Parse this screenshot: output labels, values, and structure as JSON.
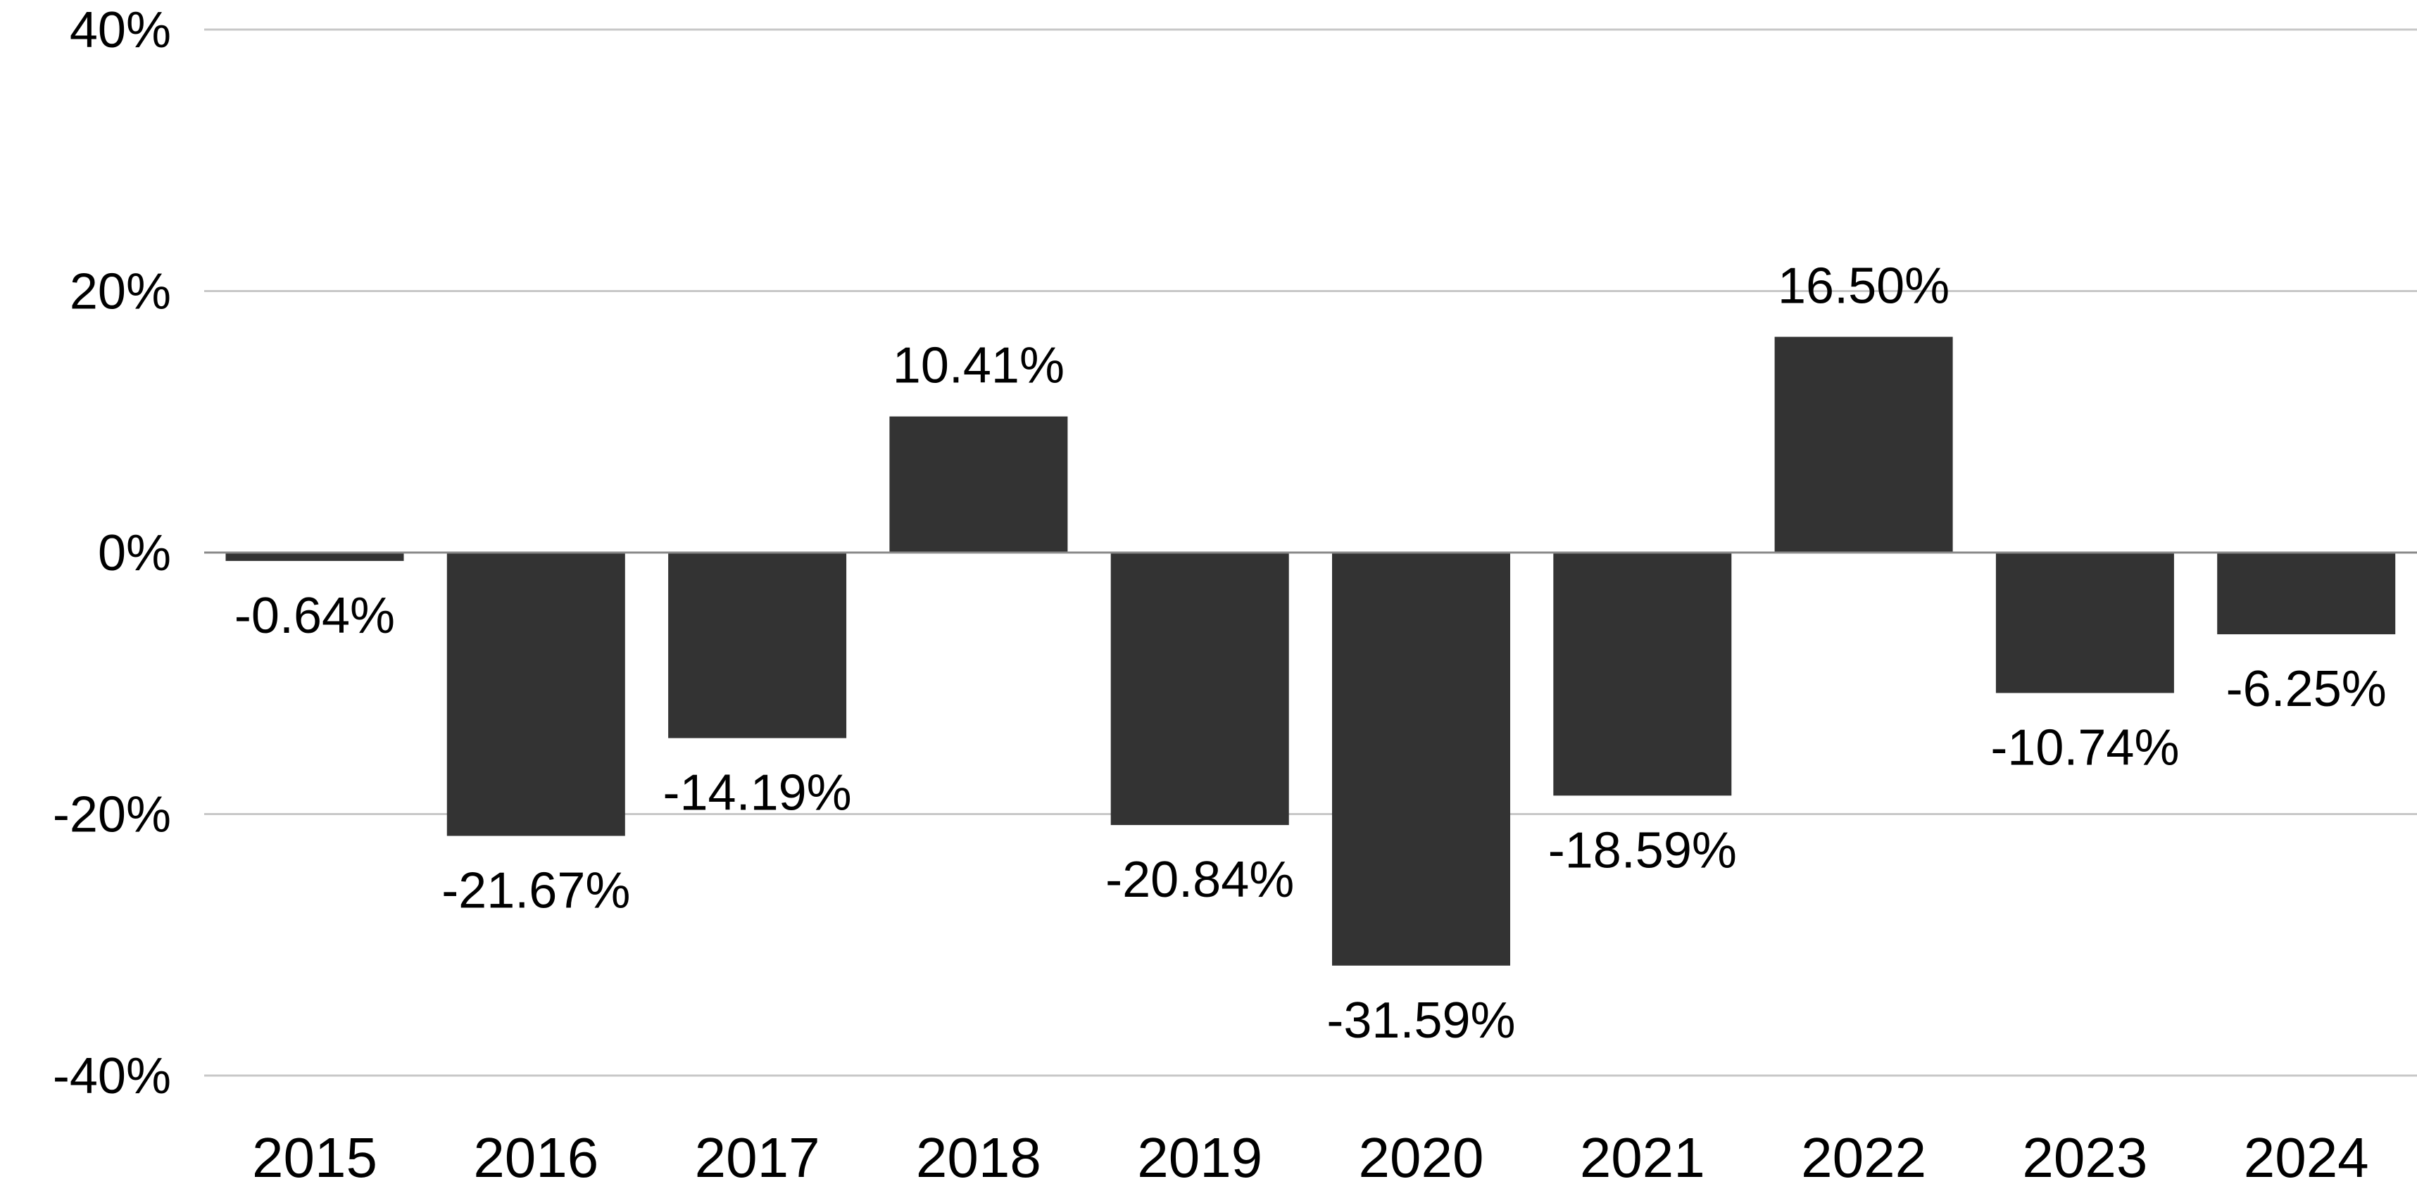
{
  "chart_data": {
    "type": "bar",
    "title": "",
    "xlabel": "",
    "ylabel": "",
    "categories": [
      "2015",
      "2016",
      "2017",
      "2018",
      "2019",
      "2020",
      "2021",
      "2022",
      "2023",
      "2024"
    ],
    "values": [
      -0.64,
      -21.67,
      -14.19,
      10.41,
      -20.84,
      -31.59,
      -18.59,
      16.5,
      -10.74,
      -6.25
    ],
    "value_labels": [
      "-0.64%",
      "-21.67%",
      "-14.19%",
      "10.41%",
      "-20.84%",
      "-31.59%",
      "-18.59%",
      "16.50%",
      "-10.74%",
      "-6.25%"
    ],
    "ylim": [
      -40,
      40
    ],
    "yticks": [
      40,
      20,
      0,
      -20,
      -40
    ],
    "ytick_labels": [
      "40%",
      "20%",
      "0%",
      "-20%",
      "-40%"
    ],
    "grid": true,
    "legend": "none",
    "bar_color": "#333333"
  }
}
